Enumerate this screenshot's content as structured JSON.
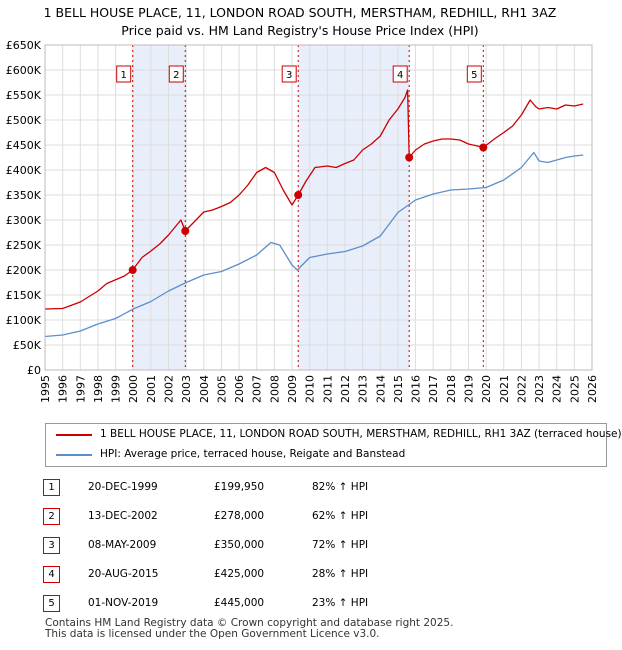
{
  "chart_data": {
    "type": "line",
    "title": "1 BELL HOUSE PLACE, 11, LONDON ROAD SOUTH, MERSTHAM, REDHILL, RH1 3AZ",
    "subtitle": "Price paid vs. HM Land Registry's House Price Index (HPI)",
    "xlabel": "",
    "ylabel": "",
    "xlim": [
      1995,
      2026
    ],
    "ylim": [
      0,
      650000
    ],
    "y_ticks": [
      {
        "value": 0,
        "label": "£0"
      },
      {
        "value": 50000,
        "label": "£50K"
      },
      {
        "value": 100000,
        "label": "£100K"
      },
      {
        "value": 150000,
        "label": "£150K"
      },
      {
        "value": 200000,
        "label": "£200K"
      },
      {
        "value": 250000,
        "label": "£250K"
      },
      {
        "value": 300000,
        "label": "£300K"
      },
      {
        "value": 350000,
        "label": "£350K"
      },
      {
        "value": 400000,
        "label": "£400K"
      },
      {
        "value": 450000,
        "label": "£450K"
      },
      {
        "value": 500000,
        "label": "£500K"
      },
      {
        "value": 550000,
        "label": "£550K"
      },
      {
        "value": 600000,
        "label": "£600K"
      },
      {
        "value": 650000,
        "label": "£650K"
      }
    ],
    "x_ticks": [
      "1995",
      "1996",
      "1997",
      "1998",
      "1999",
      "2000",
      "2001",
      "2002",
      "2003",
      "2004",
      "2005",
      "2006",
      "2007",
      "2008",
      "2009",
      "2010",
      "2011",
      "2012",
      "2013",
      "2014",
      "2015",
      "2016",
      "2017",
      "2018",
      "2019",
      "2020",
      "2021",
      "2022",
      "2023",
      "2024",
      "2025",
      "2026"
    ],
    "grid": true,
    "series": [
      {
        "name": "1 BELL HOUSE PLACE, 11, LONDON ROAD SOUTH, MERSTHAM, REDHILL, RH1 3AZ (terraced house)",
        "color": "#cc0000",
        "x": [
          1995.0,
          1996.0,
          1997.0,
          1998.0,
          1998.5,
          1999.5,
          1999.97,
          2000.5,
          2001.0,
          2001.5,
          2002.0,
          2002.7,
          2002.95,
          2003.5,
          2004.0,
          2004.5,
          2005.0,
          2005.5,
          2006.0,
          2006.5,
          2007.0,
          2007.5,
          2008.0,
          2008.5,
          2009.0,
          2009.35,
          2009.8,
          2010.3,
          2011.0,
          2011.5,
          2012.0,
          2012.5,
          2013.0,
          2013.5,
          2014.0,
          2014.5,
          2015.0,
          2015.4,
          2015.55,
          2015.64,
          2016.0,
          2016.5,
          2017.0,
          2017.5,
          2018.0,
          2018.5,
          2019.0,
          2019.5,
          2019.84,
          2020.5,
          2021.0,
          2021.5,
          2022.0,
          2022.5,
          2022.8,
          2023.0,
          2023.5,
          2024.0,
          2024.5,
          2025.0,
          2025.5
        ],
        "values": [
          122000,
          123000,
          136000,
          158000,
          173000,
          188000,
          199950,
          225000,
          238000,
          252000,
          270000,
          300000,
          278000,
          298000,
          316000,
          320000,
          327000,
          335000,
          350000,
          370000,
          395000,
          405000,
          395000,
          360000,
          330000,
          350000,
          378000,
          405000,
          408000,
          405000,
          413000,
          420000,
          440000,
          452000,
          468000,
          500000,
          522000,
          545000,
          560000,
          425000,
          440000,
          452000,
          458000,
          462000,
          462000,
          460000,
          452000,
          448000,
          445000,
          463000,
          475000,
          488000,
          510000,
          540000,
          527000,
          522000,
          525000,
          522000,
          530000,
          528000,
          532000
        ]
      },
      {
        "name": "HPI: Average price, terraced house, Reigate and Banstead",
        "color": "#5b8fcc",
        "x": [
          1995.0,
          1996.0,
          1997.0,
          1998.0,
          1999.0,
          2000.0,
          2001.0,
          2002.0,
          2003.0,
          2004.0,
          2005.0,
          2006.0,
          2007.0,
          2007.8,
          2008.3,
          2009.0,
          2009.3,
          2010.0,
          2011.0,
          2012.0,
          2013.0,
          2014.0,
          2015.0,
          2016.0,
          2017.0,
          2018.0,
          2019.0,
          2020.0,
          2021.0,
          2022.0,
          2022.7,
          2023.0,
          2023.5,
          2024.0,
          2024.5,
          2025.0,
          2025.5
        ],
        "values": [
          67000,
          70000,
          78000,
          92000,
          103000,
          122000,
          137000,
          158000,
          175000,
          190000,
          197000,
          212000,
          230000,
          255000,
          250000,
          210000,
          200000,
          225000,
          232000,
          237000,
          248000,
          268000,
          315000,
          340000,
          352000,
          360000,
          362000,
          365000,
          380000,
          405000,
          435000,
          418000,
          415000,
          420000,
          425000,
          428000,
          430000
        ]
      }
    ],
    "sales": [
      {
        "number": "1",
        "x": 1999.97,
        "date": "20-DEC-1999",
        "price_value": 199950,
        "price": "£199,950",
        "hpi": "82% ↑ HPI"
      },
      {
        "number": "2",
        "x": 2002.95,
        "date": "13-DEC-2002",
        "price_value": 278000,
        "price": "£278,000",
        "hpi": "62% ↑ HPI"
      },
      {
        "number": "3",
        "x": 2009.35,
        "date": "08-MAY-2009",
        "price_value": 350000,
        "price": "£350,000",
        "hpi": "72% ↑ HPI"
      },
      {
        "number": "4",
        "x": 2015.64,
        "date": "20-AUG-2015",
        "price_value": 425000,
        "price": "£425,000",
        "hpi": "28% ↑ HPI"
      },
      {
        "number": "5",
        "x": 2019.84,
        "date": "01-NOV-2019",
        "price_value": 445000,
        "price": "£445,000",
        "hpi": "23% ↑ HPI"
      }
    ],
    "legend_position": "below",
    "colors": {
      "price_paid": "#cc0000",
      "hpi": "#5b8fcc",
      "shade": "#e8eefa",
      "marker_line": "#cc0000"
    }
  },
  "footer": {
    "line1": "Contains HM Land Registry data © Crown copyright and database right 2025.",
    "line2": "This data is licensed under the Open Government Licence v3.0."
  }
}
